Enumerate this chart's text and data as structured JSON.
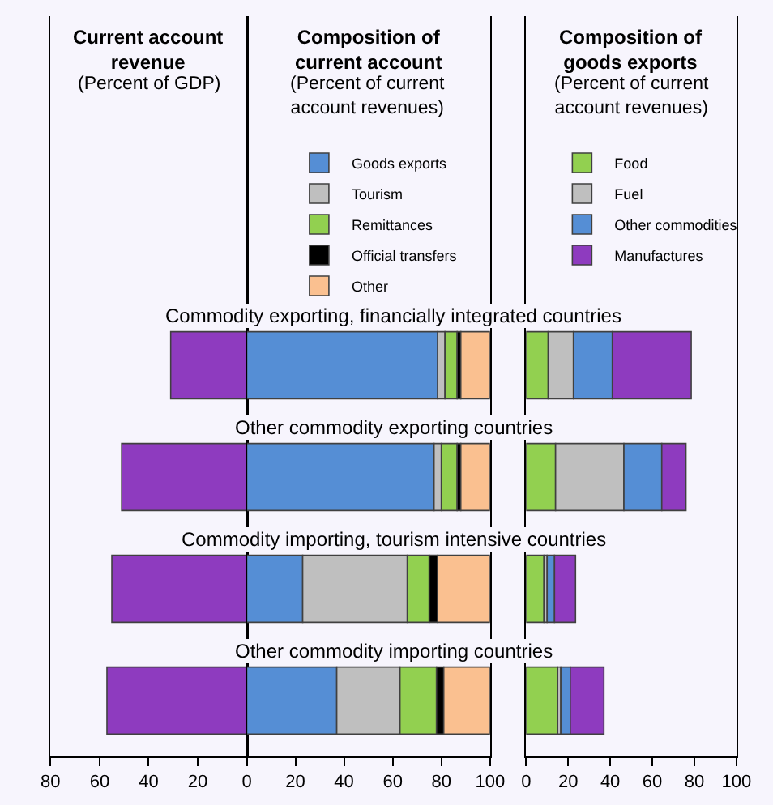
{
  "chart_data": [
    {
      "type": "bar",
      "title": "Current account revenue",
      "subtitle": "(Percent of GDP)",
      "orientation": "horizontal",
      "categories": [
        "Commodity exporting, financially integrated countries",
        "Other commodity exporting countries",
        "Commodity importing, tourism intensive countries",
        "Other commodity importing countries"
      ],
      "values": [
        31,
        51,
        55,
        57
      ],
      "color": "#8e3bbf",
      "xlim": [
        80,
        0
      ],
      "xticks": [
        80,
        60,
        40,
        20,
        {
          "value": 0,
          "label": null
        }
      ],
      "tick_labels": "x",
      "grid": false
    },
    {
      "type": "bar",
      "title": "Composition of current account",
      "subtitle": "(Percent of current account revenues)",
      "orientation": "horizontal",
      "stacked": true,
      "categories": [
        "Commodity exporting, financially integrated countries",
        "Other commodity exporting countries",
        "Commodity importing, tourism intensive countries",
        "Other commodity importing countries"
      ],
      "series": [
        {
          "name": "Goods exports",
          "color": "#558ed5",
          "values": [
            78.5,
            77,
            23,
            37
          ]
        },
        {
          "name": "Tourism",
          "color": "#bfbfbf",
          "values": [
            3,
            3,
            43,
            26
          ]
        },
        {
          "name": "Remittances",
          "color": "#92d050",
          "values": [
            5,
            6.5,
            9,
            15
          ]
        },
        {
          "name": "Official transfers",
          "color": "#000000",
          "values": [
            1.5,
            1.5,
            3.5,
            3
          ]
        },
        {
          "name": "Other",
          "color": "#fac090",
          "values": [
            12,
            12,
            21.5,
            19
          ]
        }
      ],
      "xlim": [
        0,
        100
      ],
      "xticks": [
        0,
        20,
        40,
        60,
        80,
        100
      ],
      "legend": "top",
      "grid": false
    },
    {
      "type": "bar",
      "title": "Composition of goods exports",
      "subtitle": "(Percent of current account revenues)",
      "orientation": "horizontal",
      "stacked": true,
      "categories": [
        "Commodity exporting, financially integrated countries",
        "Other commodity exporting countries",
        "Commodity importing, tourism intensive countries",
        "Other commodity importing countries"
      ],
      "series": [
        {
          "name": "Food",
          "color": "#92d050",
          "values": [
            10.5,
            14,
            8.5,
            15
          ]
        },
        {
          "name": "Fuel",
          "color": "#bfbfbf",
          "values": [
            12,
            32.5,
            1.5,
            1.5
          ]
        },
        {
          "name": "Other commodities",
          "color": "#558ed5",
          "values": [
            18.5,
            18,
            3.5,
            4.5
          ]
        },
        {
          "name": "Manufactures",
          "color": "#8e3bbf",
          "values": [
            37.5,
            11.5,
            10,
            16
          ]
        }
      ],
      "xlim": [
        0,
        100
      ],
      "xticks": [
        0,
        20,
        40,
        60,
        80,
        100
      ],
      "legend": "top",
      "tick_labels": "x",
      "grid": false
    }
  ]
}
